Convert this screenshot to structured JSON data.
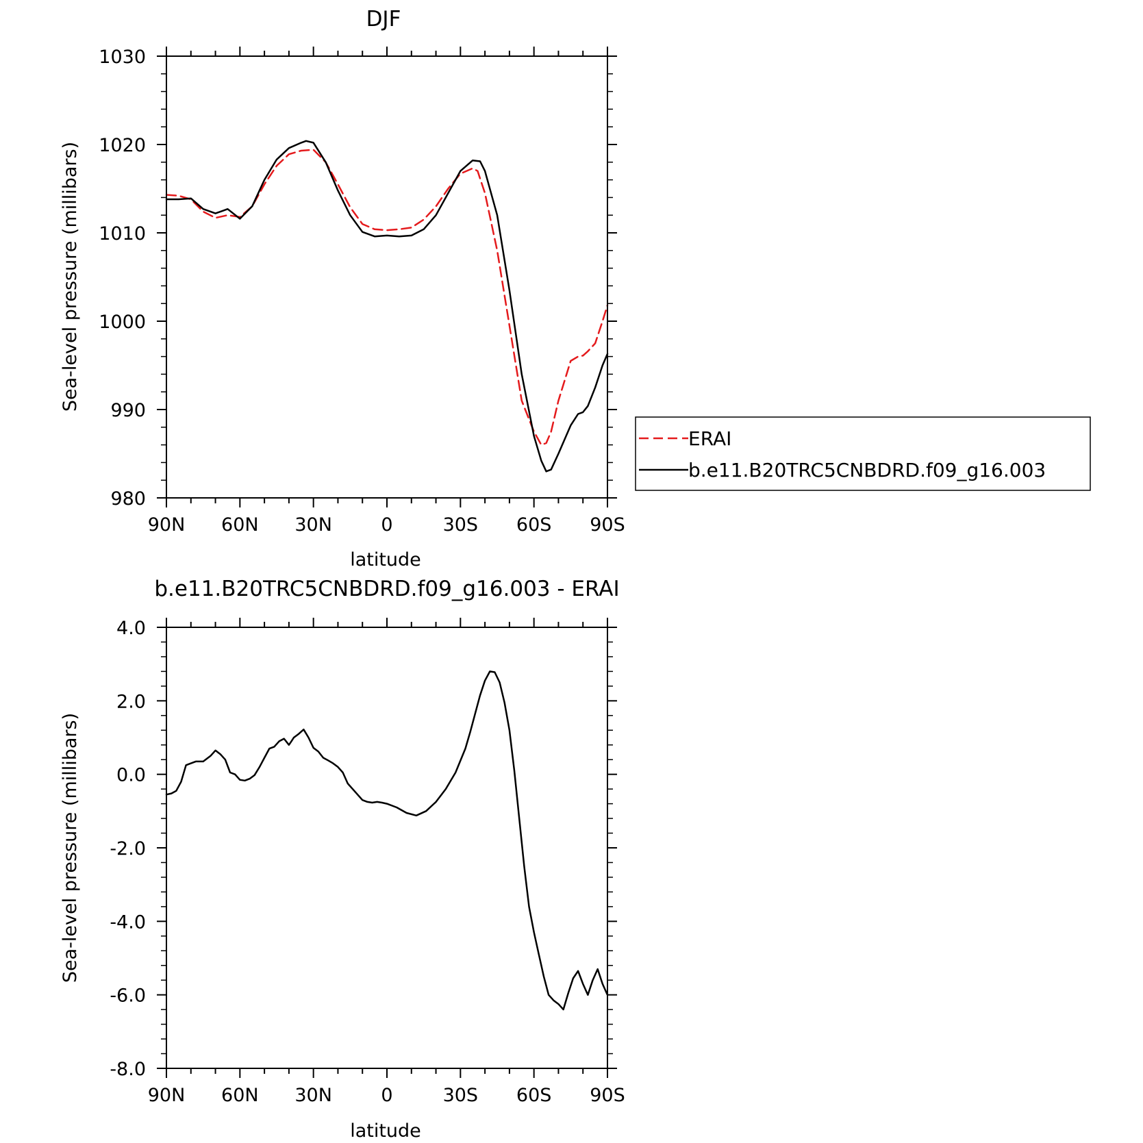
{
  "chart_data": [
    {
      "type": "line",
      "title": "DJF",
      "xlabel": "latitude",
      "ylabel": "Sea-level pressure (millibars)",
      "xlim": [
        90,
        -90
      ],
      "ylim": [
        980,
        1030
      ],
      "x_tick_values": [
        90,
        60,
        30,
        0,
        -30,
        -60,
        -90
      ],
      "x_tick_labels": [
        "90N",
        "60N",
        "30N",
        "0",
        "30S",
        "60S",
        "90S"
      ],
      "y_tick_values": [
        980,
        990,
        1000,
        1010,
        1020,
        1030
      ],
      "y_tick_labels": [
        "980",
        "990",
        "1000",
        "1010",
        "1020",
        "1030"
      ],
      "grid": false,
      "legend_position": "right",
      "series": [
        {
          "name": "ERAI",
          "color": "#e41a1c",
          "dash": "dashed",
          "x": [
            90,
            85,
            80,
            75,
            70,
            65,
            60,
            55,
            50,
            45,
            40,
            35,
            30,
            25,
            20,
            15,
            10,
            5,
            0,
            -5,
            -10,
            -15,
            -20,
            -25,
            -30,
            -35,
            -37,
            -40,
            -45,
            -50,
            -55,
            -60,
            -63,
            -65,
            -67,
            -70,
            -75,
            -78,
            -80,
            -82,
            -85,
            -88,
            -90
          ],
          "y": [
            1014.3,
            1014.2,
            1013.8,
            1012.4,
            1011.7,
            1012.0,
            1011.8,
            1013.0,
            1015.5,
            1017.6,
            1018.9,
            1019.3,
            1019.4,
            1018.0,
            1015.5,
            1012.9,
            1011.0,
            1010.4,
            1010.3,
            1010.4,
            1010.6,
            1011.5,
            1013.0,
            1015.0,
            1016.7,
            1017.3,
            1017.0,
            1014.5,
            1008.0,
            999.5,
            991.0,
            987.5,
            986.0,
            986.2,
            987.5,
            991.0,
            995.5,
            996.0,
            996.1,
            996.6,
            997.5,
            1000.0,
            1001.8
          ]
        },
        {
          "name": "b.e11.B20TRC5CNBDRD.f09_g16.003",
          "color": "#000000",
          "dash": "solid",
          "x": [
            90,
            85,
            80,
            75,
            70,
            67,
            65,
            60,
            55,
            50,
            45,
            40,
            35,
            33,
            30,
            25,
            20,
            15,
            10,
            5,
            0,
            -5,
            -10,
            -15,
            -20,
            -25,
            -30,
            -35,
            -38,
            -40,
            -45,
            -50,
            -55,
            -60,
            -63,
            -65,
            -67,
            -70,
            -75,
            -78,
            -80,
            -82,
            -85,
            -88,
            -90
          ],
          "y": [
            1013.8,
            1013.8,
            1013.9,
            1012.7,
            1012.2,
            1012.5,
            1012.7,
            1011.6,
            1013.0,
            1016.0,
            1018.3,
            1019.6,
            1020.2,
            1020.4,
            1020.2,
            1018.0,
            1014.8,
            1012.0,
            1010.1,
            1009.6,
            1009.7,
            1009.6,
            1009.7,
            1010.4,
            1012.0,
            1014.5,
            1017.0,
            1018.2,
            1018.1,
            1017.0,
            1012.0,
            1003.5,
            994.0,
            987.0,
            984.2,
            983.0,
            983.2,
            985.0,
            988.2,
            989.5,
            989.7,
            990.4,
            992.5,
            995.0,
            996.3
          ]
        }
      ]
    },
    {
      "type": "line",
      "title": "b.e11.B20TRC5CNBDRD.f09_g16.003 - ERAI",
      "xlabel": "latitude",
      "ylabel": "Sea-level pressure (millibars)",
      "xlim": [
        90,
        -90
      ],
      "ylim": [
        -8,
        4
      ],
      "x_tick_values": [
        90,
        60,
        30,
        0,
        -30,
        -60,
        -90
      ],
      "x_tick_labels": [
        "90N",
        "60N",
        "30N",
        "0",
        "30S",
        "60S",
        "90S"
      ],
      "y_tick_values": [
        -8,
        -6,
        -4,
        -2,
        0,
        2,
        4
      ],
      "y_tick_labels": [
        "-8.0",
        "-6.0",
        "-4.0",
        "-2.0",
        "0.0",
        "2.0",
        "4.0"
      ],
      "grid": false,
      "series": [
        {
          "color": "#000000",
          "dash": "solid",
          "x": [
            90,
            88,
            86,
            84,
            82,
            80,
            78,
            75,
            72,
            70,
            68,
            66,
            64,
            62,
            60,
            58,
            56,
            54,
            52,
            50,
            48,
            46,
            44,
            42,
            40,
            39,
            38,
            36,
            34,
            32,
            30,
            28,
            26,
            24,
            22,
            20,
            18,
            16,
            14,
            12,
            10,
            8,
            6,
            4,
            2,
            0,
            -4,
            -8,
            -12,
            -16,
            -20,
            -24,
            -28,
            -32,
            -34,
            -36,
            -38,
            -40,
            -42,
            -44,
            -46,
            -48,
            -50,
            -52,
            -54,
            -56,
            -58,
            -60,
            -62,
            -64,
            -66,
            -68,
            -70,
            -72,
            -74,
            -76,
            -78,
            -80,
            -82,
            -84,
            -86,
            -88,
            -90
          ],
          "y": [
            -0.55,
            -0.52,
            -0.45,
            -0.2,
            0.25,
            0.3,
            0.35,
            0.35,
            0.5,
            0.65,
            0.55,
            0.4,
            0.05,
            0.0,
            -0.15,
            -0.17,
            -0.12,
            -0.02,
            0.2,
            0.45,
            0.7,
            0.75,
            0.9,
            0.97,
            0.8,
            0.9,
            1.0,
            1.1,
            1.22,
            1.0,
            0.72,
            0.62,
            0.45,
            0.38,
            0.3,
            0.2,
            0.05,
            -0.25,
            -0.4,
            -0.55,
            -0.7,
            -0.75,
            -0.77,
            -0.75,
            -0.77,
            -0.8,
            -0.9,
            -1.05,
            -1.12,
            -1.0,
            -0.75,
            -0.4,
            0.05,
            0.7,
            1.15,
            1.65,
            2.15,
            2.55,
            2.8,
            2.78,
            2.5,
            1.95,
            1.2,
            0.1,
            -1.2,
            -2.5,
            -3.6,
            -4.3,
            -4.9,
            -5.5,
            -6.0,
            -6.15,
            -6.25,
            -6.4,
            -5.95,
            -5.55,
            -5.35,
            -5.7,
            -6.0,
            -5.6,
            -5.3,
            -5.7,
            -6.0
          ]
        }
      ]
    }
  ]
}
